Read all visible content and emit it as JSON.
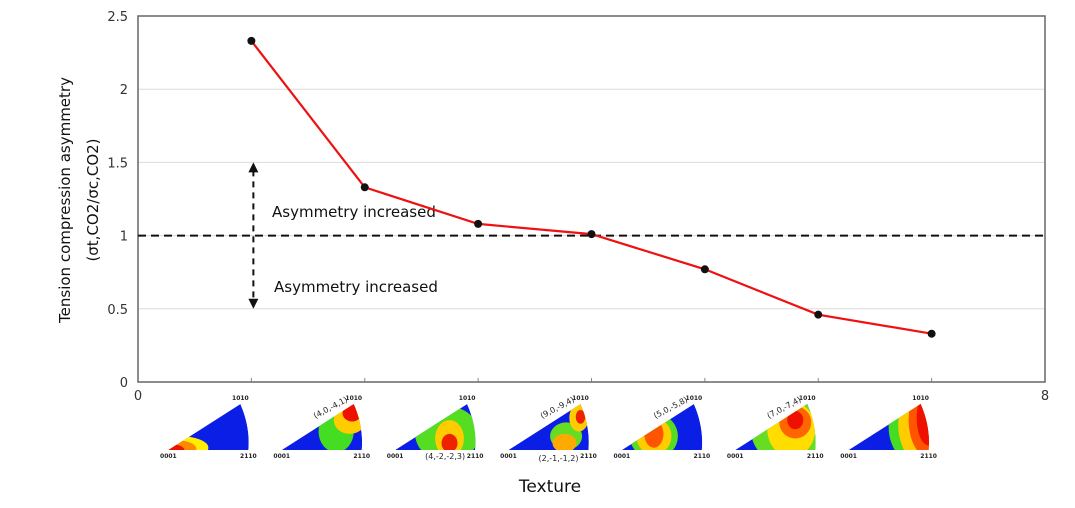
{
  "chart_data": {
    "type": "line",
    "title": "",
    "xlabel": "Texture",
    "ylabel": "Tension compression asymmetry",
    "ylabel_sub": "(σt,CO2/σc,CO2)",
    "xlim": [
      0,
      8
    ],
    "ylim": [
      0,
      2.5
    ],
    "x_tick_labels": [
      "0",
      "8"
    ],
    "y_ticks": [
      0,
      0.5,
      1,
      1.5,
      2,
      2.5
    ],
    "y_tick_labels": [
      "0",
      "0.5",
      "1",
      "1.5",
      "2",
      "2.5"
    ],
    "grid": "horizontal",
    "series": [
      {
        "x": [
          1,
          2,
          3,
          4,
          5,
          6,
          7
        ],
        "y": [
          2.33,
          1.33,
          1.08,
          1.01,
          0.77,
          0.46,
          0.33
        ],
        "color": "#ee1111",
        "marker_color": "#111111"
      }
    ],
    "reference_line": {
      "y": 1,
      "style": "dashed",
      "color": "#111111"
    },
    "annotations": [
      {
        "text": "Asymmetry increased",
        "direction": "up"
      },
      {
        "text": "Asymmetry increased",
        "direction": "down"
      }
    ],
    "pole_figures": [
      {
        "x": 1,
        "corners": [
          "1010",
          "0001",
          "2110"
        ],
        "label": ""
      },
      {
        "x": 2,
        "corners": [
          "1010",
          "0001",
          "2110"
        ],
        "label": "(4,0,-4,1)"
      },
      {
        "x": 3,
        "corners": [
          "1010",
          "0001",
          "2110"
        ],
        "label": "(4,-2,-2,3)"
      },
      {
        "x": 4,
        "corners": [
          "1010",
          "0001",
          "2110"
        ],
        "label": "(9,0,-9,4)",
        "label2": "(2,-1,-1,2)"
      },
      {
        "x": 5,
        "corners": [
          "1010",
          "0001",
          "2110"
        ],
        "label": "(5,0,-5,8)"
      },
      {
        "x": 6,
        "corners": [
          "1010",
          "0001",
          "2110"
        ],
        "label": "(7,0,-7,4)"
      },
      {
        "x": 7,
        "corners": [
          "1010",
          "0001",
          "2110"
        ],
        "label": ""
      }
    ]
  }
}
